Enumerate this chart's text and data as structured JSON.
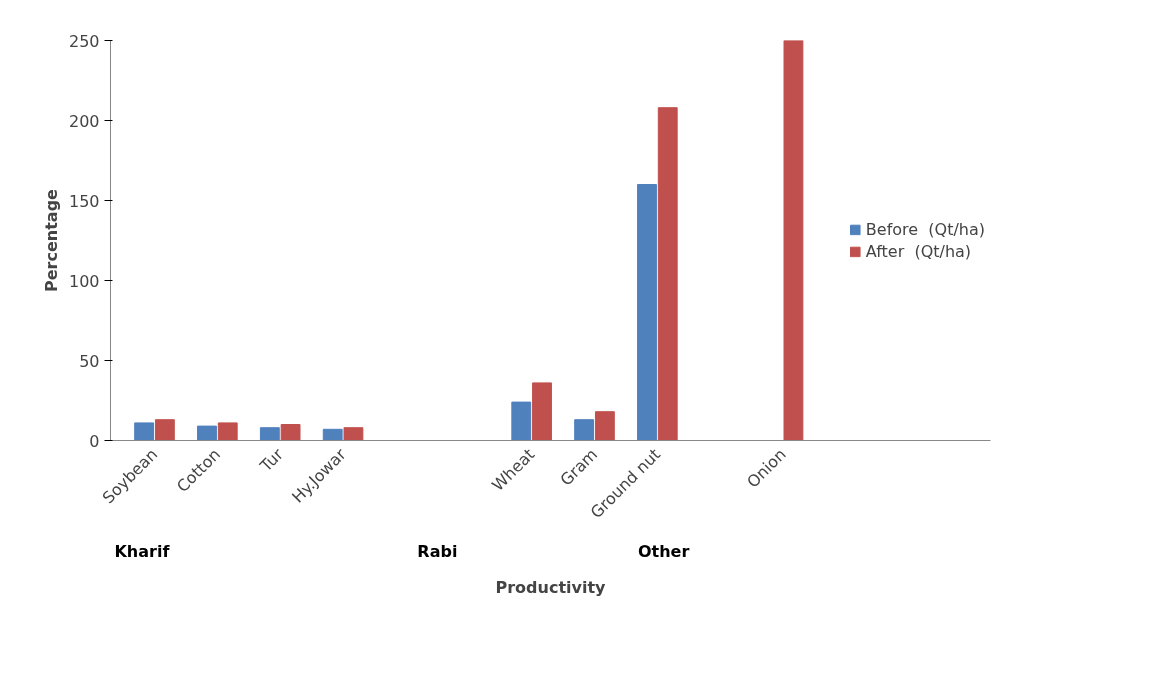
{
  "chart_data": {
    "type": "bar",
    "xlabel": "Productivity",
    "ylabel": "Percentage",
    "categories": [
      "Soybean",
      "Cotton",
      "Tur",
      "Hy.Jowar",
      null,
      null,
      "Wheat",
      "Gram",
      "Ground nut",
      null,
      "Onion"
    ],
    "series": [
      {
        "name": "Before  (Qt/ha)",
        "color": "#4f81bd",
        "values": [
          11,
          9,
          8,
          7,
          null,
          null,
          24,
          13,
          160,
          null,
          0
        ]
      },
      {
        "name": "After  (Qt/ha)",
        "color": "#c0504d",
        "values": [
          13,
          11,
          10,
          8,
          null,
          null,
          36,
          18,
          208,
          null,
          250
        ]
      }
    ],
    "ylim": [
      0,
      250
    ],
    "yticks": [
      0,
      50,
      100,
      150,
      200,
      250
    ],
    "grid": false,
    "legend": "right",
    "annotations": [
      "Kharif",
      "Rabi",
      "Other"
    ]
  }
}
